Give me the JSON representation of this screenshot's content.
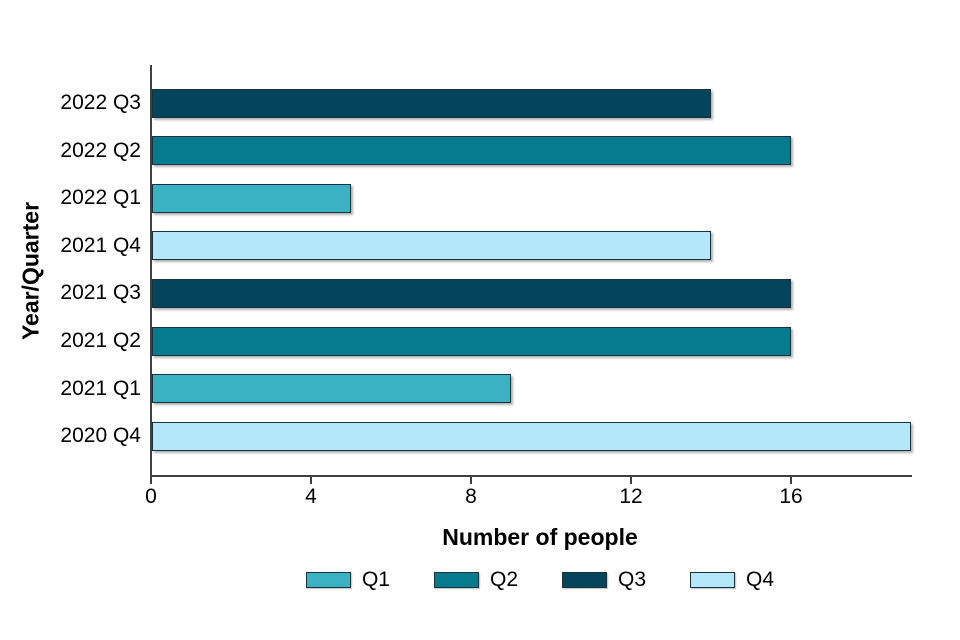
{
  "chart_data": {
    "type": "bar",
    "orientation": "horizontal",
    "title": "",
    "xlabel": "Number of people",
    "ylabel": "Year/Quarter",
    "xlim": [
      0,
      19
    ],
    "xticks": [
      0,
      4,
      8,
      12,
      16
    ],
    "grid": false,
    "legend_position": "bottom",
    "bars": [
      {
        "category": "2022 Q3",
        "value": 14,
        "series": "Q3"
      },
      {
        "category": "2022 Q2",
        "value": 16,
        "series": "Q2"
      },
      {
        "category": "2022 Q1",
        "value": 5,
        "series": "Q1"
      },
      {
        "category": "2021 Q4",
        "value": 14,
        "series": "Q4"
      },
      {
        "category": "2021 Q3",
        "value": 16,
        "series": "Q3"
      },
      {
        "category": "2021 Q2",
        "value": 16,
        "series": "Q2"
      },
      {
        "category": "2021 Q1",
        "value": 9,
        "series": "Q1"
      },
      {
        "category": "2020 Q4",
        "value": 19,
        "series": "Q4"
      }
    ],
    "legend": [
      {
        "label": "Q1",
        "color": "#3bb1c4"
      },
      {
        "label": "Q2",
        "color": "#067a8e"
      },
      {
        "label": "Q3",
        "color": "#05455c"
      },
      {
        "label": "Q4",
        "color": "#b5e7fb"
      }
    ],
    "colors": {
      "axis": "#404040",
      "bar_border": "#16333e",
      "text": "#000000"
    }
  }
}
